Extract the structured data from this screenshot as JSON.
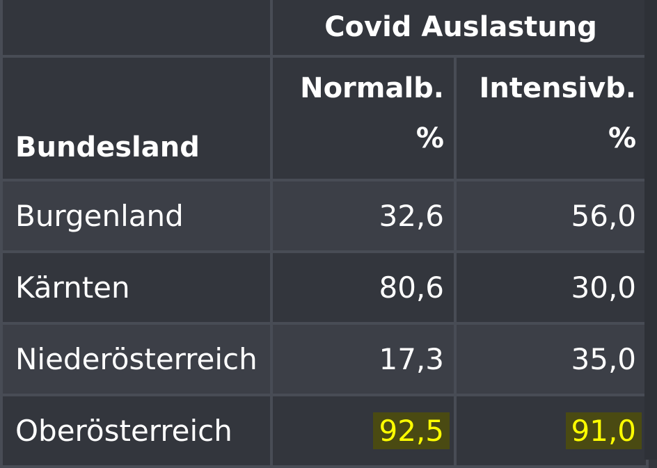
{
  "table": {
    "group_header": "Covid Auslastung",
    "col_bundesland": "Bundesland",
    "col_normal_line1": "Normalb.",
    "col_normal_line2": "%",
    "col_intensiv_line1": "Intensivb.",
    "col_intensiv_line2": "%",
    "rows": [
      {
        "name": "Burgenland",
        "normal": "32,6",
        "intensiv": "56,0",
        "highlight": false
      },
      {
        "name": "Kärnten",
        "normal": "80,6",
        "intensiv": "30,0",
        "highlight": false
      },
      {
        "name": "Niederösterreich",
        "normal": "17,3",
        "intensiv": "35,0",
        "highlight": false
      },
      {
        "name": "Oberösterreich",
        "normal": "92,5",
        "intensiv": "91,0",
        "highlight": true
      }
    ]
  },
  "colors": {
    "background": "#33363d",
    "row_alt": "#3c3f47",
    "border": "#484c55",
    "highlight_text": "#ffff00",
    "highlight_bg": "#4a4a12"
  }
}
